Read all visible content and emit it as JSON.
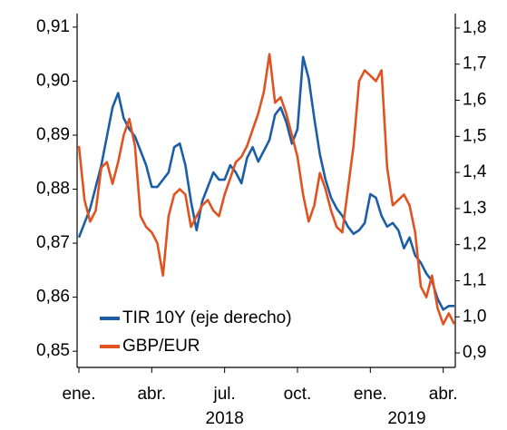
{
  "chart_data": {
    "type": "line",
    "categories": [
      "ene.",
      null,
      null,
      null,
      null,
      null,
      null,
      null,
      null,
      null,
      null,
      null,
      null,
      "abr.",
      null,
      null,
      null,
      null,
      null,
      null,
      null,
      null,
      null,
      null,
      null,
      null,
      "jul.",
      null,
      null,
      null,
      null,
      null,
      null,
      null,
      null,
      null,
      null,
      null,
      null,
      "oct.",
      null,
      null,
      null,
      null,
      null,
      null,
      null,
      null,
      null,
      null,
      null,
      null,
      "ene.",
      null,
      null,
      null,
      null,
      null,
      null,
      null,
      null,
      null,
      null,
      null,
      null,
      "abr.",
      null,
      null
    ],
    "year_labels": [
      "2018",
      "2019"
    ],
    "series": [
      {
        "name": "TIR 10Y (eje derecho)",
        "color": "#1a5ea6",
        "axis": "y2",
        "values": [
          1.22,
          1.26,
          1.3,
          1.36,
          1.42,
          1.5,
          1.58,
          1.62,
          1.55,
          1.52,
          1.5,
          1.46,
          1.42,
          1.36,
          1.36,
          1.38,
          1.4,
          1.47,
          1.48,
          1.42,
          1.32,
          1.24,
          1.32,
          1.36,
          1.4,
          1.38,
          1.38,
          1.42,
          1.4,
          1.37,
          1.44,
          1.47,
          1.43,
          1.46,
          1.49,
          1.56,
          1.58,
          1.54,
          1.48,
          1.52,
          1.72,
          1.66,
          1.55,
          1.45,
          1.38,
          1.33,
          1.3,
          1.28,
          1.25,
          1.23,
          1.24,
          1.26,
          1.34,
          1.33,
          1.28,
          1.25,
          1.26,
          1.24,
          1.19,
          1.22,
          1.17,
          1.15,
          1.12,
          1.1,
          1.05,
          1.02,
          1.03,
          1.03
        ]
      },
      {
        "name": "GBP/EUR",
        "color": "#e0521f",
        "values": [
          0.888,
          0.878,
          0.874,
          0.876,
          0.884,
          0.885,
          0.881,
          0.885,
          0.89,
          0.893,
          0.888,
          0.875,
          0.873,
          0.872,
          0.87,
          0.864,
          0.875,
          0.879,
          0.88,
          0.879,
          0.873,
          0.875,
          0.877,
          0.878,
          0.876,
          0.875,
          0.879,
          0.882,
          0.885,
          0.886,
          0.888,
          0.891,
          0.894,
          0.898,
          0.905,
          0.896,
          0.897,
          0.894,
          0.89,
          0.886,
          0.879,
          0.874,
          0.877,
          0.883,
          0.88,
          0.876,
          0.873,
          0.872,
          0.88,
          0.888,
          0.9,
          0.902,
          0.901,
          0.9,
          0.902,
          0.884,
          0.877,
          0.878,
          0.879,
          0.877,
          0.872,
          0.862,
          0.86,
          0.864,
          0.858,
          0.855,
          0.857,
          0.855
        ]
      }
    ],
    "ylim": [
      0.847,
      0.9125
    ],
    "yticks": [
      {
        "value": 0.85,
        "label": "0,85"
      },
      {
        "value": 0.86,
        "label": "0,86"
      },
      {
        "value": 0.87,
        "label": "0,87"
      },
      {
        "value": 0.88,
        "label": "0,88"
      },
      {
        "value": 0.89,
        "label": "0,89"
      },
      {
        "value": 0.9,
        "label": "0,90"
      },
      {
        "value": 0.91,
        "label": "0,91"
      }
    ],
    "y2lim": [
      0.86,
      1.84
    ],
    "y2ticks": [
      {
        "value": 0.9,
        "label": "0,9"
      },
      {
        "value": 1.0,
        "label": "1,0"
      },
      {
        "value": 1.1,
        "label": "1,1"
      },
      {
        "value": 1.2,
        "label": "1,2"
      },
      {
        "value": 1.3,
        "label": "1,3"
      },
      {
        "value": 1.4,
        "label": "1,4"
      },
      {
        "value": 1.5,
        "label": "1,5"
      },
      {
        "value": 1.6,
        "label": "1,6"
      },
      {
        "value": 1.7,
        "label": "1,7"
      },
      {
        "value": 1.8,
        "label": "1,8"
      }
    ],
    "legend": "lower left",
    "grid": false
  }
}
